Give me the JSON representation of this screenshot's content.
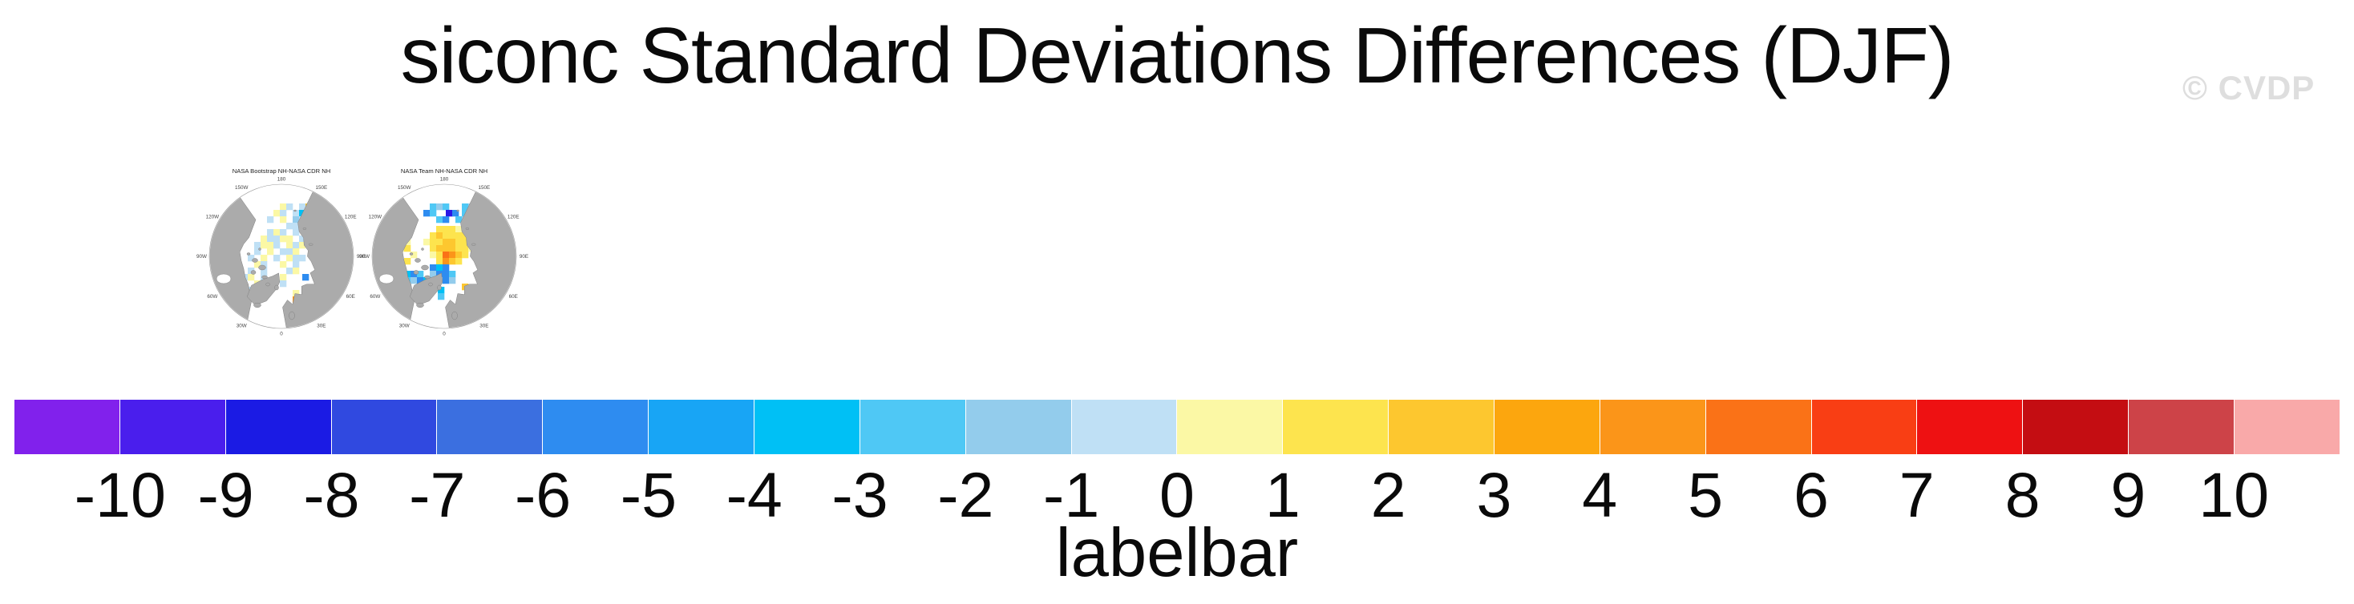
{
  "title": "siconc Standard Deviations Differences (DJF)",
  "watermark": "© CVDP",
  "cell_palette": {
    "pu": "#8121EC",
    "db": "#2B17E6",
    "b": "#2E8CF0",
    "c": "#00C0F5",
    "sb": "#4FC8F5",
    "lb": "#93CCEC",
    "pb": "#BFE0F5",
    "py": "#FBF8A5",
    "y": "#FDE44E",
    "g": "#FDC72F",
    "o": "#FB9519",
    "do": "#FA7217"
  },
  "maps": [
    {
      "title": "NASA Bootstrap NH-NASA CDR NH",
      "lon_labels": [
        "180",
        "150E",
        "120E",
        "90E",
        "60E",
        "30E",
        "0",
        "30W",
        "60W",
        "90W",
        "120W",
        "150W"
      ],
      "cells": [
        [
          110,
          48,
          "py"
        ],
        [
          118,
          48,
          "pb"
        ],
        [
          134,
          48,
          "pb"
        ],
        [
          142,
          48,
          "g"
        ],
        [
          102,
          56,
          "py"
        ],
        [
          110,
          56,
          "pb"
        ],
        [
          126,
          56,
          "pb"
        ],
        [
          134,
          56,
          "c"
        ],
        [
          142,
          56,
          "py"
        ],
        [
          94,
          64,
          "pb"
        ],
        [
          110,
          64,
          "py"
        ],
        [
          126,
          64,
          "lb"
        ],
        [
          134,
          64,
          "pb"
        ],
        [
          150,
          64,
          "pb"
        ],
        [
          118,
          72,
          "pb"
        ],
        [
          126,
          72,
          "pb"
        ],
        [
          142,
          72,
          "py"
        ],
        [
          94,
          80,
          "pb"
        ],
        [
          102,
          80,
          "py"
        ],
        [
          110,
          80,
          "pb"
        ],
        [
          126,
          80,
          "pb"
        ],
        [
          86,
          88,
          "py"
        ],
        [
          94,
          88,
          "pb"
        ],
        [
          102,
          88,
          "pb"
        ],
        [
          110,
          88,
          "py"
        ],
        [
          118,
          88,
          "py"
        ],
        [
          134,
          88,
          "pb"
        ],
        [
          78,
          96,
          "pb"
        ],
        [
          86,
          96,
          "py"
        ],
        [
          94,
          96,
          "py"
        ],
        [
          102,
          96,
          "pb"
        ],
        [
          118,
          96,
          "py"
        ],
        [
          126,
          96,
          "pb"
        ],
        [
          134,
          96,
          "py"
        ],
        [
          78,
          104,
          "pb"
        ],
        [
          94,
          104,
          "py"
        ],
        [
          110,
          104,
          "pb"
        ],
        [
          118,
          104,
          "pb"
        ],
        [
          126,
          104,
          "py"
        ],
        [
          70,
          112,
          "pb"
        ],
        [
          86,
          112,
          "py"
        ],
        [
          102,
          112,
          "pb"
        ],
        [
          118,
          112,
          "py"
        ],
        [
          126,
          112,
          "pb"
        ],
        [
          134,
          112,
          "pb"
        ],
        [
          78,
          120,
          "py"
        ],
        [
          86,
          120,
          "pb"
        ],
        [
          110,
          120,
          "py"
        ],
        [
          126,
          120,
          "pb"
        ],
        [
          70,
          128,
          "pb"
        ],
        [
          86,
          128,
          "pb"
        ],
        [
          118,
          128,
          "pb"
        ],
        [
          126,
          128,
          "py"
        ],
        [
          138,
          136,
          "b"
        ],
        [
          62,
          136,
          "pb"
        ],
        [
          70,
          136,
          "py"
        ],
        [
          86,
          136,
          "pb"
        ],
        [
          110,
          136,
          "py"
        ],
        [
          46,
          144,
          "py"
        ],
        [
          54,
          144,
          "pb"
        ],
        [
          78,
          144,
          "py"
        ],
        [
          110,
          144,
          "pb"
        ],
        [
          46,
          152,
          "pb"
        ],
        [
          62,
          152,
          "py"
        ],
        [
          70,
          152,
          "pb"
        ],
        [
          126,
          156,
          "py"
        ],
        [
          54,
          160,
          "py"
        ],
        [
          62,
          160,
          "py"
        ],
        [
          126,
          164,
          "o"
        ]
      ]
    },
    {
      "title": "NASA Team NH-NASA CDR NH",
      "lon_labels": [
        "180",
        "150E",
        "120E",
        "90E",
        "60E",
        "30E",
        "0",
        "30W",
        "60W",
        "90W",
        "120W",
        "150W"
      ],
      "cells": [
        [
          94,
          48,
          "sb"
        ],
        [
          102,
          48,
          "lb"
        ],
        [
          110,
          48,
          "sb"
        ],
        [
          134,
          48,
          "sb"
        ],
        [
          142,
          48,
          "lb"
        ],
        [
          158,
          48,
          "g"
        ],
        [
          86,
          56,
          "b"
        ],
        [
          94,
          56,
          "sb"
        ],
        [
          114,
          56,
          "db"
        ],
        [
          122,
          56,
          "b"
        ],
        [
          134,
          56,
          "sb"
        ],
        [
          142,
          56,
          "b"
        ],
        [
          102,
          64,
          "sb"
        ],
        [
          110,
          64,
          "b"
        ],
        [
          126,
          64,
          "sb"
        ],
        [
          134,
          64,
          "lb"
        ],
        [
          150,
          64,
          "sb"
        ],
        [
          102,
          76,
          "y"
        ],
        [
          110,
          76,
          "y"
        ],
        [
          118,
          76,
          "y"
        ],
        [
          126,
          76,
          "py"
        ],
        [
          94,
          84,
          "y"
        ],
        [
          102,
          84,
          "g"
        ],
        [
          110,
          84,
          "y"
        ],
        [
          118,
          84,
          "y"
        ],
        [
          126,
          84,
          "y"
        ],
        [
          134,
          84,
          "y"
        ],
        [
          86,
          92,
          "py"
        ],
        [
          94,
          92,
          "y"
        ],
        [
          102,
          92,
          "y"
        ],
        [
          110,
          92,
          "g"
        ],
        [
          118,
          92,
          "g"
        ],
        [
          126,
          92,
          "y"
        ],
        [
          134,
          92,
          "y"
        ],
        [
          94,
          100,
          "y"
        ],
        [
          102,
          100,
          "g"
        ],
        [
          110,
          100,
          "g"
        ],
        [
          118,
          100,
          "g"
        ],
        [
          126,
          100,
          "y"
        ],
        [
          134,
          100,
          "y"
        ],
        [
          142,
          100,
          "py"
        ],
        [
          94,
          108,
          "py"
        ],
        [
          102,
          108,
          "y"
        ],
        [
          110,
          108,
          "do"
        ],
        [
          118,
          108,
          "o"
        ],
        [
          126,
          108,
          "g"
        ],
        [
          134,
          108,
          "y"
        ],
        [
          102,
          116,
          "y"
        ],
        [
          110,
          116,
          "o"
        ],
        [
          118,
          116,
          "g"
        ],
        [
          126,
          116,
          "y"
        ],
        [
          54,
          92,
          "py"
        ],
        [
          62,
          92,
          "py"
        ],
        [
          54,
          100,
          "py"
        ],
        [
          62,
          100,
          "y"
        ],
        [
          70,
          108,
          "py"
        ],
        [
          62,
          116,
          "y"
        ],
        [
          94,
          124,
          "b"
        ],
        [
          102,
          124,
          "c"
        ],
        [
          110,
          124,
          "b"
        ],
        [
          38,
          132,
          "sb"
        ],
        [
          54,
          132,
          "sb"
        ],
        [
          62,
          132,
          "c"
        ],
        [
          70,
          132,
          "b"
        ],
        [
          78,
          132,
          "sb"
        ],
        [
          94,
          132,
          "lb"
        ],
        [
          102,
          132,
          "b"
        ],
        [
          110,
          132,
          "b"
        ],
        [
          118,
          132,
          "sb"
        ],
        [
          38,
          140,
          "b"
        ],
        [
          46,
          140,
          "sb"
        ],
        [
          62,
          140,
          "sb"
        ],
        [
          70,
          140,
          "lb"
        ],
        [
          78,
          140,
          "b"
        ],
        [
          86,
          140,
          "c"
        ],
        [
          94,
          140,
          "sb"
        ],
        [
          102,
          140,
          "lb"
        ],
        [
          110,
          140,
          "b"
        ],
        [
          118,
          140,
          "lb"
        ],
        [
          62,
          148,
          "sb"
        ],
        [
          46,
          148,
          "lb"
        ],
        [
          86,
          148,
          "c"
        ],
        [
          134,
          148,
          "g"
        ],
        [
          104,
          152,
          "c"
        ],
        [
          104,
          160,
          "sb"
        ]
      ]
    }
  ],
  "labelbar": {
    "caption": "labelbar",
    "tick_labels": [
      "-10",
      "-9",
      "-8",
      "-7",
      "-6",
      "-5",
      "-4",
      "-3",
      "-2",
      "-1",
      "0",
      "1",
      "2",
      "3",
      "4",
      "5",
      "6",
      "7",
      "8",
      "9",
      "10"
    ],
    "colors": [
      "#8121EC",
      "#4A1EED",
      "#1B1BE4",
      "#3049E0",
      "#3B6FE0",
      "#2E8CF0",
      "#18A5F5",
      "#00C0F5",
      "#4FC8F5",
      "#93CCEC",
      "#BFE0F5",
      "#FBF8A5",
      "#FDE44E",
      "#FDC72F",
      "#FCA60E",
      "#FB9519",
      "#FA7217",
      "#F93E14",
      "#EE1112",
      "#C40D12",
      "#CD4348",
      "#F9A9A9"
    ]
  },
  "chart_data": {
    "type": "heatmap",
    "title": "siconc Standard Deviations Differences (DJF)",
    "variable": "siconc",
    "season": "DJF",
    "panels": [
      {
        "title": "NASA Bootstrap NH-NASA CDR NH",
        "projection": "north-polar-stereographic",
        "summary": "Scattered weak differences of about -1 to +1 (pale blue / pale yellow cells) across the central Arctic basin, Siberian shelf and Canadian Archipelago; isolated +2/+5 cells near 150E coast and east of Svalbard."
      },
      {
        "title": "NASA Team NH-NASA CDR NH",
        "projection": "north-polar-stereographic",
        "summary": "Positive differences of +1 to +6 (yellow/gold/orange) over the central Arctic pack, a negative band of -3 to -9 (cyan/blue, one -8/-9 cell) along the Siberian coast and Barents/Kara seas, weak positives near the Canadian Archipelago."
      }
    ],
    "colorbar": {
      "label": "labelbar",
      "levels": [
        -10,
        -9,
        -8,
        -7,
        -6,
        -5,
        -4,
        -3,
        -2,
        -1,
        0,
        1,
        2,
        3,
        4,
        5,
        6,
        7,
        8,
        9,
        10
      ],
      "colors": [
        "#8121EC",
        "#4A1EED",
        "#1B1BE4",
        "#3049E0",
        "#3B6FE0",
        "#2E8CF0",
        "#18A5F5",
        "#00C0F5",
        "#4FC8F5",
        "#93CCEC",
        "#BFE0F5",
        "#FBF8A5",
        "#FDE44E",
        "#FDC72F",
        "#FCA60E",
        "#FB9519",
        "#FA7217",
        "#F93E14",
        "#EE1112",
        "#C40D12",
        "#CD4348",
        "#F9A9A9"
      ],
      "orientation": "horizontal",
      "extent": "full-width"
    }
  }
}
